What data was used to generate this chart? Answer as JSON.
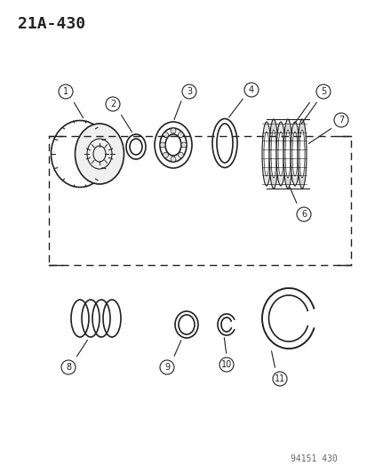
{
  "title": "21A-430",
  "footer": "94151 430",
  "bg_color": "#ffffff",
  "line_color": "#222222",
  "title_fontsize": 13,
  "footer_fontsize": 7,
  "figsize": [
    4.14,
    5.33
  ],
  "dpi": 100
}
